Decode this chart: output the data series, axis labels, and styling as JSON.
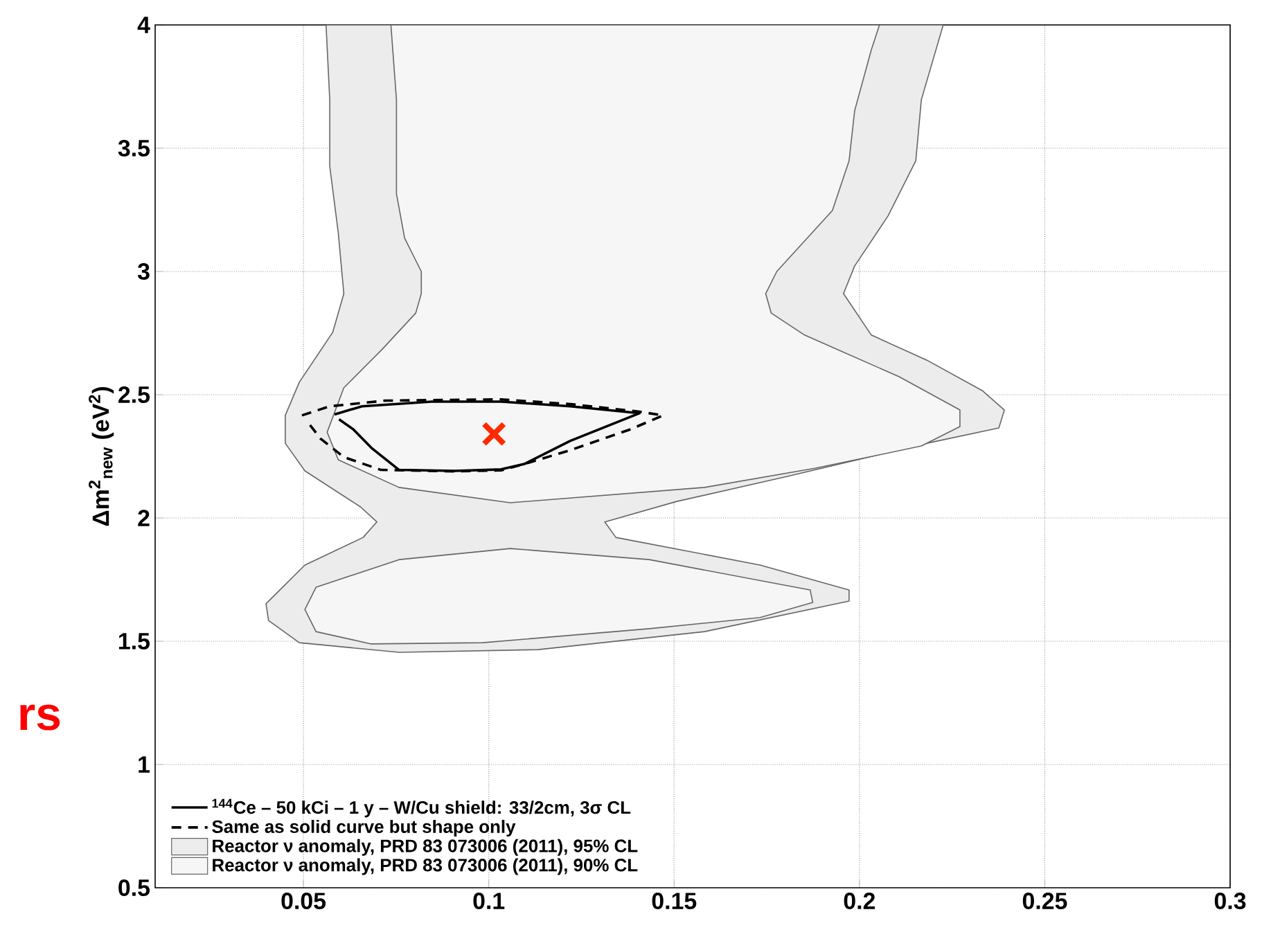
{
  "chart_data": {
    "type": "line",
    "ylabel": "Δm$^{2}$$_{new}$ (eV$^{2}$)",
    "annotations": [
      "rs"
    ],
    "xlim": [
      0.01,
      0.3
    ],
    "xticks": [
      0.05,
      0.1,
      0.15,
      0.2,
      0.25,
      0.3
    ],
    "ylim": [
      0.5,
      4
    ],
    "yticks": [
      0.5,
      1,
      1.5,
      2,
      2.5,
      3,
      3.5,
      4
    ],
    "grid": true,
    "legend": "bottom left",
    "series": [
      {
        "name": "$^{144}$Ce – 50 kCi – 1 y – W/Cu shield: 33/2cm, 3σ  CL",
        "line_style": "solid",
        "color": "#000000",
        "x": [
          0.0584,
          0.0658,
          0.0846,
          0.1033,
          0.122,
          0.1407,
          0.122,
          0.1096,
          0.1033,
          0.0908,
          0.0758,
          0.0683,
          0.0634,
          0.0596
        ],
        "values": [
          2.42,
          2.453,
          2.472,
          2.472,
          2.453,
          2.425,
          2.313,
          2.219,
          2.197,
          2.191,
          2.195,
          2.285,
          2.36,
          2.4
        ]
      },
      {
        "name": "Same as solid curve but shape only",
        "line_style": "dashed",
        "color": "#000000",
        "x": [
          0.0496,
          0.0571,
          0.0721,
          0.1033,
          0.122,
          0.1407,
          0.147,
          0.1383,
          0.122,
          0.1096,
          0.1033,
          0.0908,
          0.0709,
          0.0609,
          0.0546,
          0.0511
        ],
        "values": [
          2.416,
          2.453,
          2.476,
          2.481,
          2.462,
          2.431,
          2.416,
          2.36,
          2.275,
          2.219,
          2.193,
          2.189,
          2.195,
          2.247,
          2.322,
          2.39
        ]
      },
      {
        "name": "Reactor ν anomaly, PRD 83 073006 (2011), 95% CL",
        "type": "area",
        "color": "#ececec",
        "x": [
          0.0561,
          0.0571,
          0.0571,
          0.0594,
          0.0609,
          0.0579,
          0.0489,
          0.0451,
          0.0451,
          0.0504,
          0.0654,
          0.0698,
          0.0661,
          0.0504,
          0.0399,
          0.0406,
          0.0489,
          0.0758,
          0.1133,
          0.1582,
          0.1972,
          0.1972,
          0.1732,
          0.1343,
          0.1313,
          0.1507,
          0.1807,
          0.2182,
          0.2376,
          0.2391,
          0.2331,
          0.2182,
          0.2032,
          0.1957,
          0.1987,
          0.2077,
          0.2152,
          0.2167,
          0.2226
        ],
        "values": [
          4,
          3.697,
          3.427,
          3.157,
          2.91,
          2.753,
          2.551,
          2.416,
          2.303,
          2.191,
          2.045,
          1.984,
          1.921,
          1.809,
          1.652,
          1.584,
          1.494,
          1.455,
          1.466,
          1.539,
          1.663,
          1.708,
          1.809,
          1.921,
          1.984,
          2.067,
          2.169,
          2.303,
          2.365,
          2.438,
          2.517,
          2.64,
          2.742,
          2.91,
          3.022,
          3.225,
          3.449,
          3.697,
          4
        ]
      },
      {
        "name": "Reactor ν anomaly, PRD 83 073006 (2011), 90% CL",
        "type": "area",
        "color": "#f6f6f6",
        "x": [
          0.0736,
          0.0751,
          0.0751,
          0.0773,
          0.0818,
          0.0818,
          0.0803,
          0.0713,
          0.0609,
          0.0564,
          0.0594,
          0.0758,
          0.1058,
          0.1582,
          0.1882,
          0.2167,
          0.2271,
          0.2271,
          0.2107,
          0.1852,
          0.1762,
          0.1747,
          0.1777,
          0.1927,
          0.1972,
          0.1987,
          0.2032,
          0.2054
        ],
        "values": [
          4,
          3.697,
          3.315,
          3.135,
          3.0,
          2.91,
          2.831,
          2.685,
          2.528,
          2.348,
          2.236,
          2.124,
          2.062,
          2.124,
          2.202,
          2.292,
          2.371,
          2.438,
          2.573,
          2.742,
          2.831,
          2.91,
          3.0,
          3.247,
          3.449,
          3.652,
          3.899,
          4
        ]
      },
      {
        "type": "area",
        "color": "#f6f6f6",
        "x": [
          0.0504,
          0.0534,
          0.0758,
          0.1058,
          0.1433,
          0.1867,
          0.1874,
          0.1732,
          0.1433,
          0.0983,
          0.0683,
          0.0534
        ],
        "values": [
          1.629,
          1.719,
          1.831,
          1.876,
          1.831,
          1.708,
          1.657,
          1.596,
          1.551,
          1.494,
          1.489,
          1.539
        ]
      },
      {
        "type": "scatter",
        "marker": "cross",
        "color": "#ff2a00",
        "x": [
          0.1014
        ],
        "values": [
          2.341
        ]
      }
    ]
  }
}
